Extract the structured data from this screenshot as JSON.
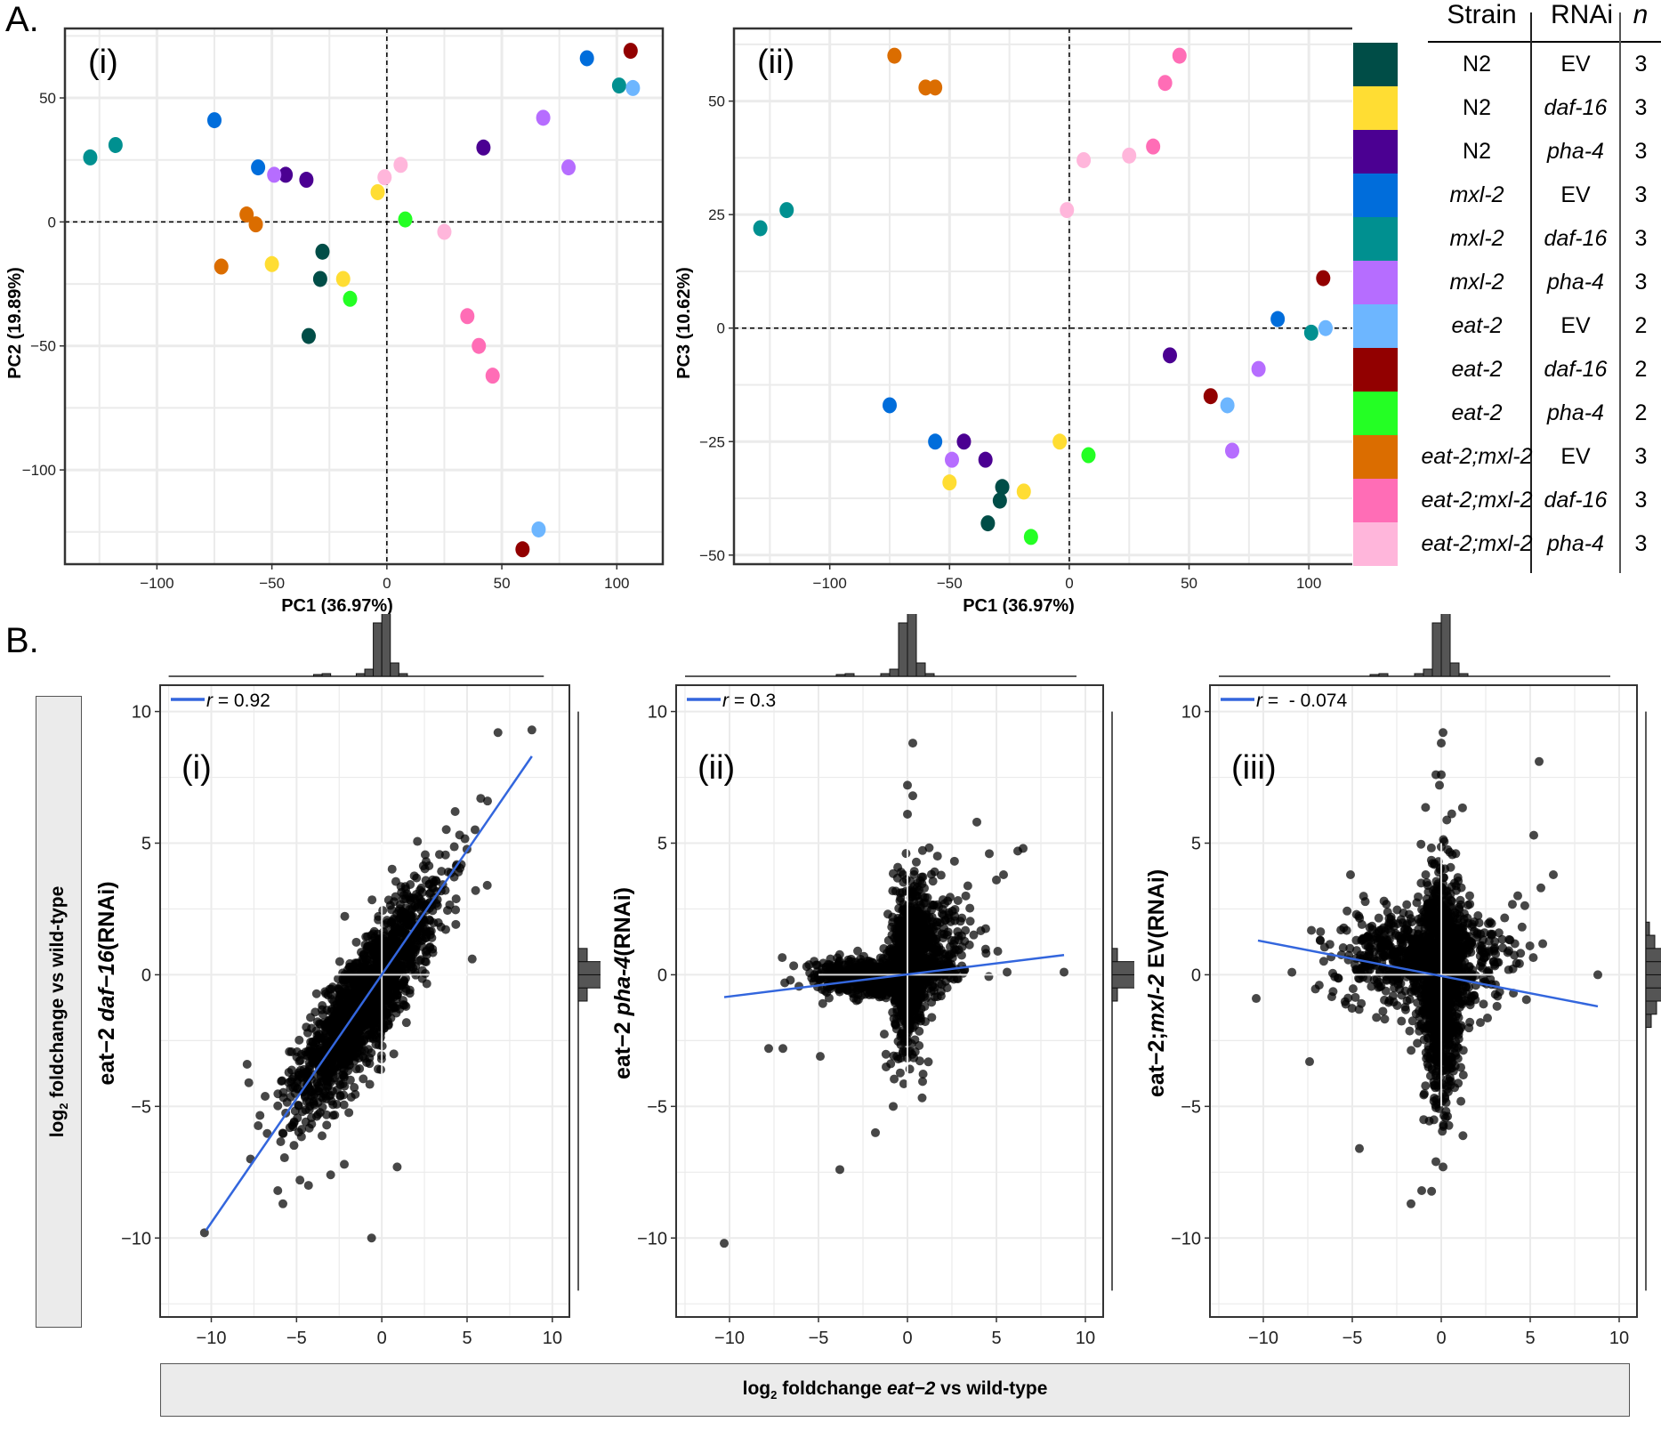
{
  "figure": {
    "panel_A_label": "A.",
    "panel_B_label": "B."
  },
  "legend": {
    "headers": {
      "strain": "Strain",
      "rnai": "RNAi",
      "n": "n"
    },
    "rows": [
      {
        "strain": "N2",
        "strain_italic": false,
        "rnai": "EV",
        "rnai_italic": false,
        "n": "3",
        "color": "#004d47"
      },
      {
        "strain": "N2",
        "strain_italic": false,
        "rnai": "daf-16",
        "rnai_italic": true,
        "n": "3",
        "color": "#ffdd33"
      },
      {
        "strain": "N2",
        "strain_italic": false,
        "rnai": "pha-4",
        "rnai_italic": true,
        "n": "3",
        "color": "#4b0092"
      },
      {
        "strain": "mxl-2",
        "strain_italic": true,
        "rnai": "EV",
        "rnai_italic": false,
        "n": "3",
        "color": "#006ddb"
      },
      {
        "strain": "mxl-2",
        "strain_italic": true,
        "rnai": "daf-16",
        "rnai_italic": true,
        "n": "3",
        "color": "#009090"
      },
      {
        "strain": "mxl-2",
        "strain_italic": true,
        "rnai": "pha-4",
        "rnai_italic": true,
        "n": "3",
        "color": "#b66dff"
      },
      {
        "strain": "eat-2",
        "strain_italic": true,
        "rnai": "EV",
        "rnai_italic": false,
        "n": "2",
        "color": "#6db6ff"
      },
      {
        "strain": "eat-2",
        "strain_italic": true,
        "rnai": "daf-16",
        "rnai_italic": true,
        "n": "2",
        "color": "#920000"
      },
      {
        "strain": "eat-2",
        "strain_italic": true,
        "rnai": "pha-4",
        "rnai_italic": true,
        "n": "2",
        "color": "#24ff24"
      },
      {
        "strain": "eat-2;mxl-2",
        "strain_italic": true,
        "rnai": "EV",
        "rnai_italic": false,
        "n": "3",
        "color": "#db6d00"
      },
      {
        "strain": "eat-2;mxl-2",
        "strain_italic": true,
        "rnai": "daf-16",
        "rnai_italic": true,
        "n": "3",
        "color": "#ff6db6"
      },
      {
        "strain": "eat-2;mxl-2",
        "strain_italic": true,
        "rnai": "pha-4",
        "rnai_italic": true,
        "n": "3",
        "color": "#ffb6db"
      }
    ]
  },
  "chart_data": [
    {
      "id": "A-i",
      "type": "scatter",
      "panel_label": "(i)",
      "xlabel": "PC1 (36.97%)",
      "ylabel": "PC2 (19.89%)",
      "xlim": [
        -140,
        120
      ],
      "ylim": [
        -138,
        78
      ],
      "xticks": [
        -100,
        -50,
        0,
        50,
        100
      ],
      "yticks": [
        50,
        0,
        -50,
        -100
      ],
      "xtick_labels": [
        "−100",
        "−50",
        "0",
        "50",
        "100"
      ],
      "ytick_labels": [
        "50",
        "0",
        "−50",
        "−100"
      ],
      "grid": true,
      "reference_lines": {
        "x": 0,
        "y": 0
      },
      "series": [
        {
          "group": 0,
          "points": [
            [
              -28,
              -12
            ],
            [
              -29,
              -23
            ],
            [
              -34,
              -46
            ]
          ]
        },
        {
          "group": 1,
          "points": [
            [
              -4,
              12
            ],
            [
              -50,
              -17
            ],
            [
              -19,
              -23
            ]
          ]
        },
        {
          "group": 2,
          "points": [
            [
              -44,
              19
            ],
            [
              -35,
              17
            ],
            [
              42,
              30
            ]
          ]
        },
        {
          "group": 3,
          "points": [
            [
              -75,
              41
            ],
            [
              -56,
              22
            ],
            [
              87,
              66
            ]
          ]
        },
        {
          "group": 4,
          "points": [
            [
              -129,
              26
            ],
            [
              -118,
              31
            ],
            [
              101,
              55
            ]
          ]
        },
        {
          "group": 5,
          "points": [
            [
              -49,
              19
            ],
            [
              68,
              42
            ],
            [
              79,
              22
            ]
          ]
        },
        {
          "group": 6,
          "points": [
            [
              66,
              -124
            ],
            [
              107,
              54
            ]
          ]
        },
        {
          "group": 7,
          "points": [
            [
              59,
              -132
            ],
            [
              106,
              69
            ]
          ]
        },
        {
          "group": 8,
          "points": [
            [
              8,
              1
            ],
            [
              -16,
              -31
            ]
          ]
        },
        {
          "group": 9,
          "points": [
            [
              -61,
              3
            ],
            [
              -57,
              -1
            ],
            [
              -72,
              -18
            ]
          ]
        },
        {
          "group": 10,
          "points": [
            [
              35,
              -38
            ],
            [
              40,
              -50
            ],
            [
              46,
              -62
            ]
          ]
        },
        {
          "group": 11,
          "points": [
            [
              6,
              23
            ],
            [
              -1,
              18
            ],
            [
              25,
              -4
            ]
          ]
        }
      ]
    },
    {
      "id": "A-ii",
      "type": "scatter",
      "panel_label": "(ii)",
      "xlabel": "PC1 (36.97%)",
      "ylabel": "PC3 (10.62%)",
      "xlim": [
        -140,
        120
      ],
      "ylim": [
        -52,
        66
      ],
      "xticks": [
        -100,
        -50,
        0,
        50,
        100
      ],
      "yticks": [
        50,
        25,
        0,
        -25,
        -50
      ],
      "xtick_labels": [
        "−100",
        "−50",
        "0",
        "50",
        "100"
      ],
      "ytick_labels": [
        "50",
        "25",
        "0",
        "−25",
        "−50"
      ],
      "grid": true,
      "reference_lines": {
        "x": 0,
        "y": 0
      },
      "series": [
        {
          "group": 0,
          "points": [
            [
              -28,
              -35
            ],
            [
              -29,
              -38
            ],
            [
              -34,
              -43
            ]
          ]
        },
        {
          "group": 1,
          "points": [
            [
              -4,
              -25
            ],
            [
              -50,
              -34
            ],
            [
              -19,
              -36
            ]
          ]
        },
        {
          "group": 2,
          "points": [
            [
              -44,
              -25
            ],
            [
              -35,
              -29
            ],
            [
              42,
              -6
            ]
          ]
        },
        {
          "group": 3,
          "points": [
            [
              -75,
              -17
            ],
            [
              -56,
              -25
            ],
            [
              87,
              2
            ]
          ]
        },
        {
          "group": 4,
          "points": [
            [
              -129,
              22
            ],
            [
              -118,
              26
            ],
            [
              101,
              -1
            ]
          ]
        },
        {
          "group": 5,
          "points": [
            [
              -49,
              -29
            ],
            [
              68,
              -27
            ],
            [
              79,
              -9
            ]
          ]
        },
        {
          "group": 6,
          "points": [
            [
              66,
              -17
            ],
            [
              107,
              0
            ]
          ]
        },
        {
          "group": 7,
          "points": [
            [
              59,
              -15
            ],
            [
              106,
              11
            ]
          ]
        },
        {
          "group": 8,
          "points": [
            [
              8,
              -28
            ],
            [
              -16,
              -46
            ]
          ]
        },
        {
          "group": 9,
          "points": [
            [
              -73,
              60
            ],
            [
              -60,
              53
            ],
            [
              -56,
              53
            ]
          ]
        },
        {
          "group": 10,
          "points": [
            [
              35,
              40
            ],
            [
              40,
              54
            ],
            [
              46,
              60
            ]
          ]
        },
        {
          "group": 11,
          "points": [
            [
              6,
              37
            ],
            [
              -1,
              26
            ],
            [
              25,
              38
            ]
          ]
        }
      ]
    },
    {
      "id": "B-i",
      "type": "scatter",
      "panel_label": "(i)",
      "ylabel_parts": [
        {
          "t": "eat−2 ",
          "i": false
        },
        {
          "t": "daf−16",
          "i": true
        },
        {
          "t": "(RNAi)",
          "i": false
        }
      ],
      "annotation": {
        "label": "r",
        "text": " = 0.92"
      },
      "correlation_r": 0.92,
      "fit_line": {
        "x": [
          -10.3,
          8.8
        ],
        "y": [
          -9.7,
          8.3
        ]
      },
      "xlim": [
        -13,
        11
      ],
      "ylim": [
        -13,
        11
      ],
      "xticks": [
        -10,
        -5,
        0,
        5,
        10
      ],
      "yticks": [
        10,
        5,
        0,
        -5,
        -10
      ],
      "xtick_labels": [
        "−10",
        "−5",
        "0",
        "5",
        "10"
      ],
      "ytick_labels": [
        "10",
        "5",
        "0",
        "−5",
        "−10"
      ],
      "grid": true,
      "cloud": {
        "shape": "diagonal",
        "slope": 0.95,
        "sx": 1.9,
        "sy": 0.9
      },
      "outliers": [
        [
          8.8,
          9.3
        ],
        [
          5.8,
          6.7
        ],
        [
          6.2,
          6.6
        ],
        [
          4.3,
          6.2
        ],
        [
          5.5,
          3.2
        ],
        [
          5.3,
          0.6
        ],
        [
          -10.4,
          -9.8
        ],
        [
          -0.6,
          -10.0
        ],
        [
          0.9,
          -7.3
        ],
        [
          -5.8,
          -8.7
        ],
        [
          -6.1,
          -8.2
        ],
        [
          -4.3,
          -8.0
        ],
        [
          -3.0,
          -7.6
        ],
        [
          -2.2,
          -7.2
        ],
        [
          -7.7,
          -7.0
        ],
        [
          -7.8,
          -4.1
        ],
        [
          -4.8,
          -7.8
        ],
        [
          2.6,
          4.3
        ],
        [
          3.9,
          3.9
        ],
        [
          -7.9,
          -3.4
        ]
      ]
    },
    {
      "id": "B-ii",
      "type": "scatter",
      "panel_label": "(ii)",
      "ylabel_parts": [
        {
          "t": "eat−2 ",
          "i": false
        },
        {
          "t": "pha-4",
          "i": true
        },
        {
          "t": "(RNAi)",
          "i": false
        }
      ],
      "annotation": {
        "label": "r",
        "text": " = 0.3"
      },
      "correlation_r": 0.3,
      "fit_line": {
        "x": [
          -10.3,
          8.8
        ],
        "y": [
          -0.85,
          0.75
        ]
      },
      "xlim": [
        -13,
        11
      ],
      "ylim": [
        -13,
        11
      ],
      "xticks": [
        -10,
        -5,
        0,
        5,
        10
      ],
      "yticks": [
        10,
        5,
        0,
        -5,
        -10
      ],
      "xtick_labels": [
        "−10",
        "−5",
        "0",
        "5",
        "10"
      ],
      "ytick_labels": [
        "10",
        "5",
        "0",
        "−5",
        "−10"
      ],
      "grid": true,
      "cloud": {
        "shape": "cross",
        "sx": 1.8,
        "sy": 1.1
      },
      "outliers": [
        [
          0.3,
          8.8
        ],
        [
          0,
          7.2
        ],
        [
          0.3,
          6.8
        ],
        [
          0,
          6.1
        ],
        [
          3.9,
          5.8
        ],
        [
          8.8,
          0.1
        ],
        [
          5.6,
          0.1
        ],
        [
          -10.3,
          -10.2
        ],
        [
          -3.8,
          -7.4
        ],
        [
          -1.8,
          -6.0
        ],
        [
          -0.8,
          -5.0
        ],
        [
          -1.2,
          -3.5
        ],
        [
          -7.8,
          -2.8
        ],
        [
          -7.0,
          -2.8
        ],
        [
          -4.9,
          -3.1
        ],
        [
          6.5,
          4.8
        ],
        [
          6.2,
          4.7
        ],
        [
          4.6,
          4.6
        ],
        [
          5.4,
          3.8
        ],
        [
          5.0,
          3.6
        ]
      ]
    },
    {
      "id": "B-iii",
      "type": "scatter",
      "panel_label": "(iii)",
      "ylabel_parts": [
        {
          "t": "eat−2;",
          "i": false
        },
        {
          "t": "mxl-2",
          "i": true
        },
        {
          "t": " EV(RNAi)",
          "i": false
        }
      ],
      "annotation": {
        "label": "r",
        "text": " =  - 0.074"
      },
      "correlation_r": -0.074,
      "fit_line": {
        "x": [
          -10.3,
          8.8
        ],
        "y": [
          1.3,
          -1.2
        ]
      },
      "xlim": [
        -13,
        11
      ],
      "ylim": [
        -13,
        11
      ],
      "xticks": [
        -10,
        -5,
        0,
        5,
        10
      ],
      "yticks": [
        10,
        5,
        0,
        -5,
        -10
      ],
      "xtick_labels": [
        "−10",
        "−5",
        "0",
        "5",
        "10"
      ],
      "ytick_labels": [
        "10",
        "5",
        "0",
        "−5",
        "−10"
      ],
      "grid": true,
      "cloud": {
        "shape": "cross-wide",
        "sx": 1.9,
        "sy": 1.5
      },
      "outliers": [
        [
          0.1,
          9.2
        ],
        [
          0,
          8.8
        ],
        [
          0,
          7.6
        ],
        [
          -0.3,
          7.6
        ],
        [
          5.5,
          8.1
        ],
        [
          -0.1,
          7.2
        ],
        [
          8.8,
          0.0
        ],
        [
          -10.4,
          -0.9
        ],
        [
          -7.4,
          -3.3
        ],
        [
          -1.7,
          -8.7
        ],
        [
          -1.1,
          -8.2
        ],
        [
          -4.6,
          -6.6
        ],
        [
          -0.3,
          -7.1
        ],
        [
          0.1,
          -7.3
        ],
        [
          4.3,
          3.0
        ],
        [
          5.2,
          5.3
        ],
        [
          5.6,
          3.3
        ],
        [
          6.3,
          3.8
        ],
        [
          -6.8,
          1.3
        ],
        [
          -5.1,
          3.8
        ]
      ]
    }
  ],
  "shared_axes": {
    "y_title_prefix": "log",
    "y_title_sub": "2",
    "y_title_suffix": " foldchange  vs wild-type",
    "x_title_prefix": "log",
    "x_title_sub": "2",
    "x_title_mid": " foldchange ",
    "x_title_italic": "eat−2",
    "x_title_suffix": " vs wild-type"
  }
}
